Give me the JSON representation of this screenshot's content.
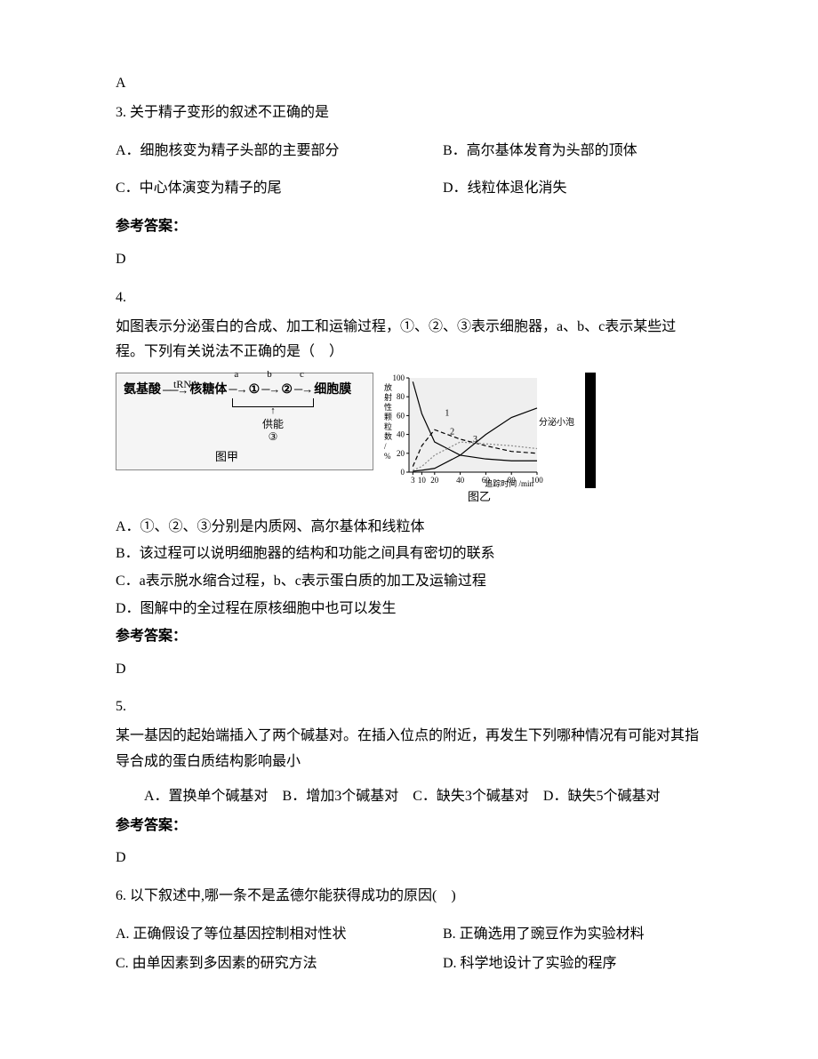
{
  "prev_answer": "A",
  "q3": {
    "num": "3.",
    "stem": "关于精子变形的叙述不正确的是",
    "A": "A．细胞核变为精子头部的主要部分",
    "B": "B．高尔基体发育为头部的顶体",
    "C": "C．中心体演变为精子的尾",
    "D": "D．线粒体退化消失",
    "answer_label": "参考答案：",
    "answer": "D"
  },
  "q4": {
    "num": "4.",
    "stem": "如图表示分泌蛋白的合成、加工和运输过程，①、②、③表示细胞器，a、b、c表示某些过程。下列有关说法不正确的是（　）",
    "figure_jia": {
      "amino": "氨基酸",
      "trna": "tRNA",
      "ribosome": "核糖体",
      "a": "a",
      "b": "b",
      "c": "c",
      "c1": "①",
      "c2": "②",
      "membrane": "细胞膜",
      "supply": "供能",
      "c3": "③",
      "caption": "图甲"
    },
    "figure_yi": {
      "ylabel": "放射性颗粒数/%",
      "yticks": [
        0,
        20,
        40,
        60,
        80,
        100
      ],
      "xticks": [
        3,
        10,
        20,
        40,
        60,
        80,
        100
      ],
      "xlabel": "追踪时间 /min",
      "caption": "图乙",
      "series": {
        "s1": {
          "label": "1",
          "color": "#000",
          "dash": "none",
          "points": [
            [
              3,
              96
            ],
            [
              10,
              62
            ],
            [
              20,
              32
            ],
            [
              40,
              18
            ],
            [
              60,
              14
            ],
            [
              80,
              12
            ],
            [
              100,
              12
            ]
          ]
        },
        "s2": {
          "label": "2",
          "color": "#000",
          "dash": "5,3",
          "points": [
            [
              3,
              6
            ],
            [
              10,
              28
            ],
            [
              20,
              45
            ],
            [
              40,
              35
            ],
            [
              60,
              28
            ],
            [
              80,
              22
            ],
            [
              100,
              20
            ]
          ]
        },
        "s3": {
          "label": "3",
          "color": "#888",
          "dash": "2,2",
          "points": [
            [
              3,
              2
            ],
            [
              10,
              6
            ],
            [
              20,
              18
            ],
            [
              40,
              32
            ],
            [
              60,
              30
            ],
            [
              80,
              28
            ],
            [
              100,
              25
            ]
          ]
        },
        "s4": {
          "label": "分泌小泡",
          "color": "#000",
          "dash": "none",
          "points": [
            [
              3,
              1
            ],
            [
              10,
              2
            ],
            [
              20,
              4
            ],
            [
              40,
              18
            ],
            [
              60,
              40
            ],
            [
              80,
              58
            ],
            [
              100,
              68
            ]
          ]
        }
      },
      "bg": "#efefef"
    },
    "A": "A．①、②、③分别是内质网、高尔基体和线粒体",
    "B": "B．该过程可以说明细胞器的结构和功能之间具有密切的联系",
    "C": "C．a表示脱水缩合过程，b、c表示蛋白质的加工及运输过程",
    "D": "D．图解中的全过程在原核细胞中也可以发生",
    "answer_label": "参考答案：",
    "answer": "D"
  },
  "q5": {
    "num": "5.",
    "stem": "某一基因的起始端插入了两个碱基对。在插入位点的附近，再发生下列哪种情况有可能对其指导合成的蛋白质结构影响最小",
    "opts": "A．置换单个碱基对　B．增加3个碱基对　C．缺失3个碱基对　D．缺失5个碱基对",
    "answer_label": "参考答案：",
    "answer": "D"
  },
  "q6": {
    "num": "6.",
    "stem": "以下叙述中,哪一条不是孟德尔能获得成功的原因(　)",
    "A": "A. 正确假设了等位基因控制相对性状",
    "B": "B. 正确选用了豌豆作为实验材料",
    "C": "C. 由单因素到多因素的研究方法",
    "D": "D. 科学地设计了实验的程序"
  }
}
